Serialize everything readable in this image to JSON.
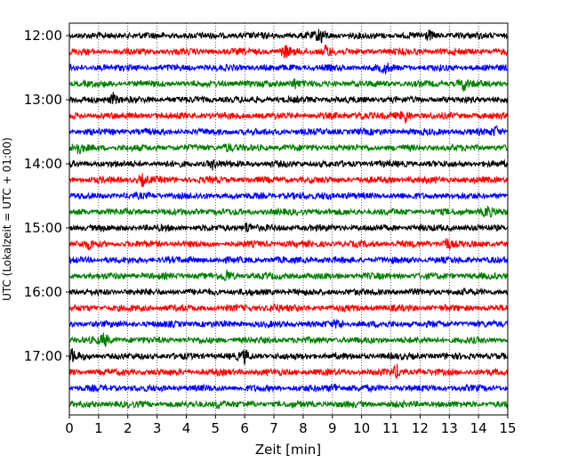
{
  "chart_data": {
    "type": "line",
    "title": "",
    "xlabel": "Zeit  [min]",
    "ylabel": "UTC (Lokalzeit = UTC + 01:00)",
    "xlim": [
      0,
      15
    ],
    "x_ticks": [
      "0",
      "1",
      "2",
      "3",
      "4",
      "5",
      "6",
      "7",
      "8",
      "9",
      "10",
      "11",
      "12",
      "13",
      "14",
      "15"
    ],
    "row_labels": [
      {
        "label": "12:00",
        "row": 0
      },
      {
        "label": "13:00",
        "row": 4
      },
      {
        "label": "14:00",
        "row": 8
      },
      {
        "label": "15:00",
        "row": 12
      },
      {
        "label": "16:00",
        "row": 16
      },
      {
        "label": "17:00",
        "row": 20
      }
    ],
    "rows": 24,
    "minutes_per_row": 15,
    "trace_colors": [
      "#000000",
      "#ff0000",
      "#0000ff",
      "#008000"
    ],
    "grid": "vertical-dotted",
    "events": [
      {
        "row": 0,
        "minute": 8.6,
        "amp": 1.0
      },
      {
        "row": 0,
        "minute": 12.3,
        "amp": 0.5
      },
      {
        "row": 1,
        "minute": 8.8,
        "amp": 0.9
      },
      {
        "row": 1,
        "minute": 7.4,
        "amp": 0.7
      },
      {
        "row": 2,
        "minute": 10.8,
        "amp": 0.6
      },
      {
        "row": 3,
        "minute": 7.7,
        "amp": 0.6
      },
      {
        "row": 3,
        "minute": 13.5,
        "amp": 0.8
      },
      {
        "row": 4,
        "minute": 1.5,
        "amp": 0.7
      },
      {
        "row": 5,
        "minute": 10.0,
        "amp": 0.5
      },
      {
        "row": 5,
        "minute": 11.5,
        "amp": 0.8
      },
      {
        "row": 6,
        "minute": 14.6,
        "amp": 0.6
      },
      {
        "row": 7,
        "minute": 0.3,
        "amp": 0.7
      },
      {
        "row": 7,
        "minute": 5.4,
        "amp": 0.5
      },
      {
        "row": 8,
        "minute": 4.9,
        "amp": 0.5
      },
      {
        "row": 9,
        "minute": 2.5,
        "amp": 0.6
      },
      {
        "row": 10,
        "minute": 8.8,
        "amp": 0.5
      },
      {
        "row": 11,
        "minute": 14.3,
        "amp": 0.7
      },
      {
        "row": 12,
        "minute": 6.1,
        "amp": 0.7
      },
      {
        "row": 13,
        "minute": 12.9,
        "amp": 0.8
      },
      {
        "row": 13,
        "minute": 0.7,
        "amp": 0.5
      },
      {
        "row": 15,
        "minute": 5.4,
        "amp": 0.7
      },
      {
        "row": 17,
        "minute": 7.0,
        "amp": 0.5
      },
      {
        "row": 18,
        "minute": 9.2,
        "amp": 0.5
      },
      {
        "row": 19,
        "minute": 1.2,
        "amp": 0.8
      },
      {
        "row": 20,
        "minute": 0.1,
        "amp": 0.7
      },
      {
        "row": 20,
        "minute": 6.0,
        "amp": 0.7
      },
      {
        "row": 21,
        "minute": 11.2,
        "amp": 0.8
      },
      {
        "row": 22,
        "minute": 9.1,
        "amp": 0.5
      },
      {
        "row": 23,
        "minute": 5.1,
        "amp": 0.5
      }
    ]
  }
}
